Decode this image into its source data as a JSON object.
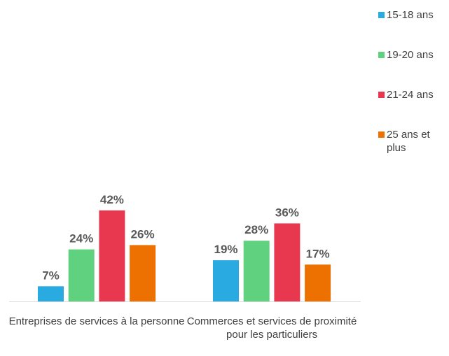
{
  "chart_data": {
    "type": "bar",
    "categories": [
      "Entreprises de services à la personne",
      "Commerces et services de proximité pour les particuliers"
    ],
    "series": [
      {
        "name": "15-18 ans",
        "color": "#29abe2",
        "values": [
          7,
          19
        ],
        "value_labels": [
          "7%",
          "19%"
        ]
      },
      {
        "name": "19-20 ans",
        "color": "#5fd17f",
        "values": [
          24,
          28
        ],
        "value_labels": [
          "24%",
          "28%"
        ]
      },
      {
        "name": "21-24 ans",
        "color": "#e8384f",
        "values": [
          42,
          36
        ],
        "value_labels": [
          "42%",
          "36%"
        ]
      },
      {
        "name": "25 ans et plus",
        "color": "#ed7100",
        "values": [
          26,
          17
        ],
        "value_labels": [
          "26%",
          "17%"
        ]
      }
    ]
  }
}
